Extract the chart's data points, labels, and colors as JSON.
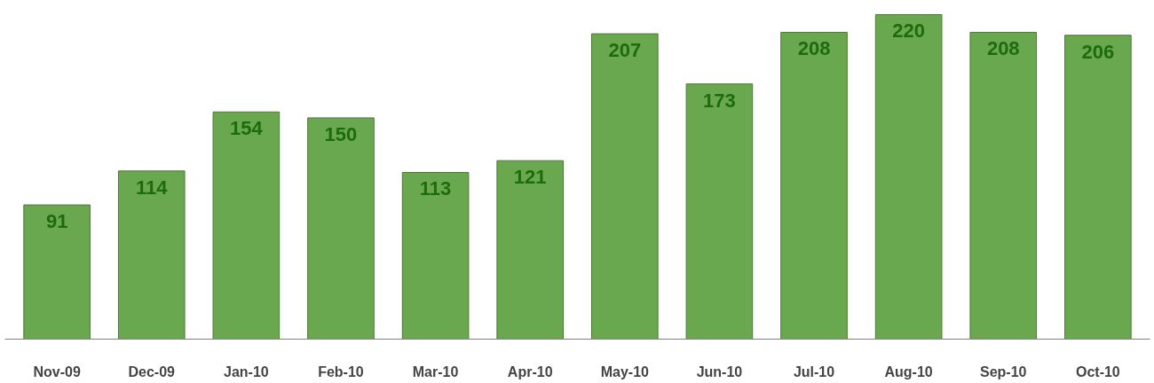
{
  "chart_data": {
    "type": "bar",
    "categories": [
      "Nov-09",
      "Dec-09",
      "Jan-10",
      "Feb-10",
      "Mar-10",
      "Apr-10",
      "May-10",
      "Jun-10",
      "Jul-10",
      "Aug-10",
      "Sep-10",
      "Oct-10"
    ],
    "values": [
      91,
      114,
      154,
      150,
      113,
      121,
      207,
      173,
      208,
      220,
      208,
      206
    ],
    "color": "#6aa84f",
    "data_labels": true
  }
}
